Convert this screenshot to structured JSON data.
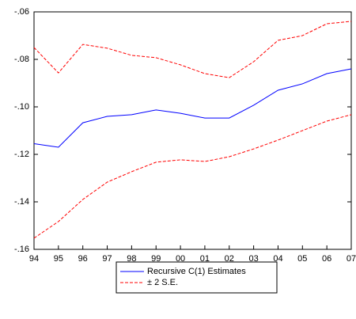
{
  "chart_data": {
    "type": "line",
    "categories": [
      "94",
      "95",
      "96",
      "97",
      "98",
      "99",
      "00",
      "01",
      "02",
      "03",
      "04",
      "05",
      "06",
      "07"
    ],
    "series": [
      {
        "name": "Recursive C(1) Estimates",
        "color": "#0000ff",
        "dashed": false,
        "values": [
          -0.1155,
          -0.117,
          -0.1067,
          -0.104,
          -0.1033,
          -0.1013,
          -0.1027,
          -0.1047,
          -0.1047,
          -0.0993,
          -0.093,
          -0.0903,
          -0.086,
          -0.084
        ]
      },
      {
        "name": "± 2 S.E.",
        "color": "#ff0000",
        "dashed": true,
        "values": [
          -0.075,
          -0.0857,
          -0.0737,
          -0.0753,
          -0.0783,
          -0.0793,
          -0.0823,
          -0.086,
          -0.0877,
          -0.081,
          -0.072,
          -0.07,
          -0.065,
          -0.064
        ],
        "lower": [
          -0.1553,
          -0.1483,
          -0.139,
          -0.1317,
          -0.1273,
          -0.1233,
          -0.1223,
          -0.123,
          -0.121,
          -0.1177,
          -0.114,
          -0.11,
          -0.106,
          -0.1033
        ]
      }
    ],
    "ylim": [
      -0.16,
      -0.06
    ],
    "yticks": [
      {
        "value": -0.16,
        "label": "-.16"
      },
      {
        "value": -0.14,
        "label": "-.14"
      },
      {
        "value": -0.12,
        "label": "-.12"
      },
      {
        "value": -0.1,
        "label": "-.10"
      },
      {
        "value": -0.08,
        "label": "-.08"
      },
      {
        "value": -0.06,
        "label": "-.06"
      }
    ],
    "grid": false
  }
}
